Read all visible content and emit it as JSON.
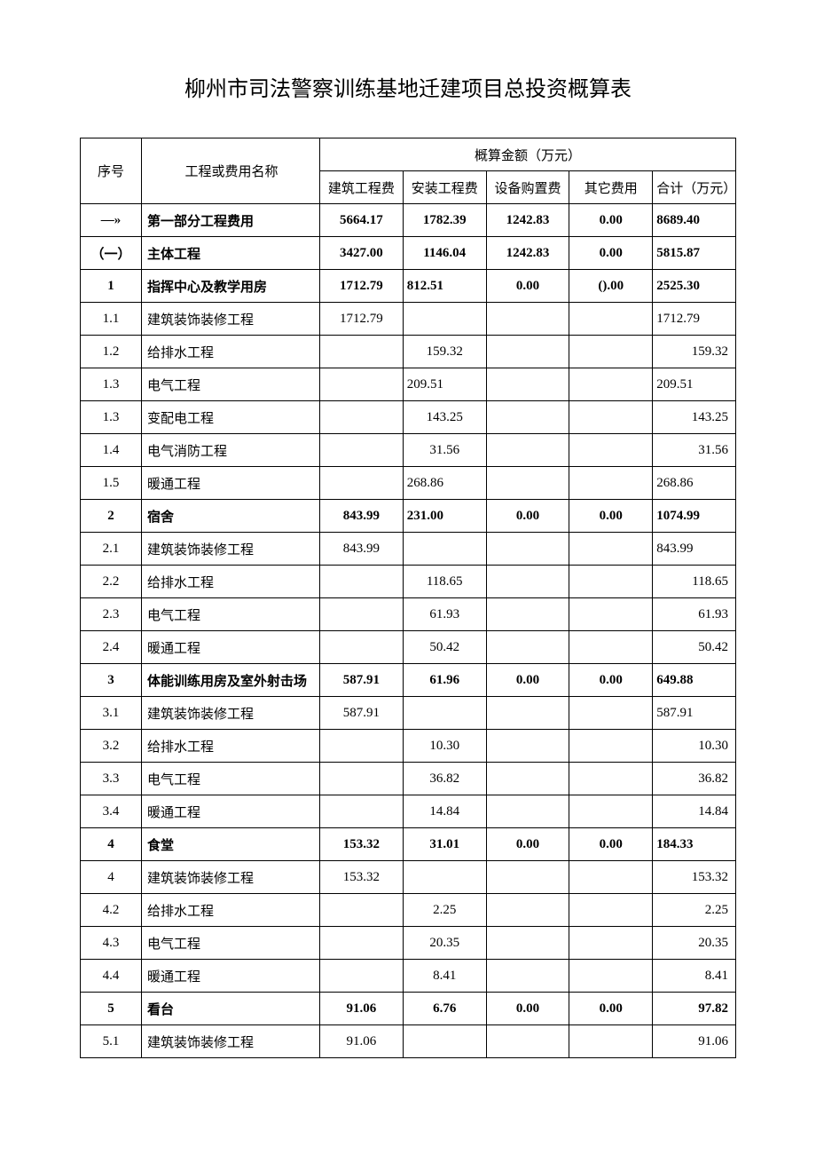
{
  "title": "柳州市司法警察训练基地迁建项目总投资概算表",
  "headers": {
    "seq": "序号",
    "name": "工程或费用名称",
    "group": "概算金额（万元）",
    "c1": "建筑工程费",
    "c2": "安装工程费",
    "c3": "设备购置费",
    "c4": "其它费用",
    "total": "合计（万元）"
  },
  "rows": [
    {
      "seq": "—»",
      "name": "第一部分工程费用",
      "c1": "5664.17",
      "c2": "1782.39",
      "c3": "1242.83",
      "c4": "0.00",
      "total": "8689.40",
      "bold": true,
      "a1": "c",
      "a2": "c",
      "a3": "c",
      "a4": "c",
      "at": "l"
    },
    {
      "seq": "（一）",
      "name": "主体工程",
      "c1": "3427.00",
      "c2": "1146.04",
      "c3": "1242.83",
      "c4": "0.00",
      "total": "5815.87",
      "bold": true,
      "a1": "c",
      "a2": "c",
      "a3": "c",
      "a4": "c",
      "at": "l"
    },
    {
      "seq": "1",
      "name": "指挥中心及教学用房",
      "c1": "1712.79",
      "c2": "812.51",
      "c3": "0.00",
      "c4": "().00",
      "total": "2525.30",
      "bold": true,
      "a1": "c",
      "a2": "l",
      "a3": "c",
      "a4": "c",
      "at": "l"
    },
    {
      "seq": "1.1",
      "name": "建筑装饰装修工程",
      "c1": "1712.79",
      "c2": "",
      "c3": "",
      "c4": "",
      "total": "1712.79",
      "bold": false,
      "a1": "c",
      "a2": "c",
      "a3": "c",
      "a4": "c",
      "at": "l"
    },
    {
      "seq": "1.2",
      "name": "给排水工程",
      "c1": "",
      "c2": "159.32",
      "c3": "",
      "c4": "",
      "total": "159.32",
      "bold": false,
      "a1": "c",
      "a2": "c",
      "a3": "c",
      "a4": "c",
      "at": "r"
    },
    {
      "seq": "1.3",
      "name": "电气工程",
      "c1": "",
      "c2": "209.51",
      "c3": "",
      "c4": "",
      "total": "209.51",
      "bold": false,
      "a1": "c",
      "a2": "l",
      "a3": "c",
      "a4": "c",
      "at": "l"
    },
    {
      "seq": "1.3",
      "name": "变配电工程",
      "c1": "",
      "c2": "143.25",
      "c3": "",
      "c4": "",
      "total": "143.25",
      "bold": false,
      "a1": "c",
      "a2": "c",
      "a3": "c",
      "a4": "c",
      "at": "r"
    },
    {
      "seq": "1.4",
      "name": "电气消防工程",
      "c1": "",
      "c2": "31.56",
      "c3": "",
      "c4": "",
      "total": "31.56",
      "bold": false,
      "a1": "c",
      "a2": "c",
      "a3": "c",
      "a4": "c",
      "at": "r"
    },
    {
      "seq": "1.5",
      "name": "暖通工程",
      "c1": "",
      "c2": "268.86",
      "c3": "",
      "c4": "",
      "total": "268.86",
      "bold": false,
      "a1": "c",
      "a2": "l",
      "a3": "c",
      "a4": "c",
      "at": "l"
    },
    {
      "seq": "2",
      "name": "宿舍",
      "c1": "843.99",
      "c2": "231.00",
      "c3": "0.00",
      "c4": "0.00",
      "total": "1074.99",
      "bold": true,
      "a1": "c",
      "a2": "l",
      "a3": "c",
      "a4": "c",
      "at": "l"
    },
    {
      "seq": "2.1",
      "name": "建筑装饰装修工程",
      "c1": "843.99",
      "c2": "",
      "c3": "",
      "c4": "",
      "total": "843.99",
      "bold": false,
      "a1": "c",
      "a2": "c",
      "a3": "c",
      "a4": "c",
      "at": "l"
    },
    {
      "seq": "2.2",
      "name": "给排水工程",
      "c1": "",
      "c2": "118.65",
      "c3": "",
      "c4": "",
      "total": "118.65",
      "bold": false,
      "a1": "c",
      "a2": "c",
      "a3": "c",
      "a4": "c",
      "at": "r"
    },
    {
      "seq": "2.3",
      "name": "电气工程",
      "c1": "",
      "c2": "61.93",
      "c3": "",
      "c4": "",
      "total": "61.93",
      "bold": false,
      "a1": "c",
      "a2": "c",
      "a3": "c",
      "a4": "c",
      "at": "r"
    },
    {
      "seq": "2.4",
      "name": "暖通工程",
      "c1": "",
      "c2": "50.42",
      "c3": "",
      "c4": "",
      "total": "50.42",
      "bold": false,
      "a1": "c",
      "a2": "c",
      "a3": "c",
      "a4": "c",
      "at": "r"
    },
    {
      "seq": "3",
      "name": "体能训练用房及室外射击场",
      "c1": "587.91",
      "c2": "61.96",
      "c3": "0.00",
      "c4": "0.00",
      "total": "649.88",
      "bold": true,
      "a1": "c",
      "a2": "c",
      "a3": "c",
      "a4": "c",
      "at": "l"
    },
    {
      "seq": "3.1",
      "name": "建筑装饰装修工程",
      "c1": "587.91",
      "c2": "",
      "c3": "",
      "c4": "",
      "total": "587.91",
      "bold": false,
      "a1": "c",
      "a2": "c",
      "a3": "c",
      "a4": "c",
      "at": "l"
    },
    {
      "seq": "3.2",
      "name": "给排水工程",
      "c1": "",
      "c2": "10.30",
      "c3": "",
      "c4": "",
      "total": "10.30",
      "bold": false,
      "a1": "c",
      "a2": "c",
      "a3": "c",
      "a4": "c",
      "at": "r"
    },
    {
      "seq": "3.3",
      "name": "电气工程",
      "c1": "",
      "c2": "36.82",
      "c3": "",
      "c4": "",
      "total": "36.82",
      "bold": false,
      "a1": "c",
      "a2": "c",
      "a3": "c",
      "a4": "c",
      "at": "r"
    },
    {
      "seq": "3.4",
      "name": "暖通工程",
      "c1": "",
      "c2": "14.84",
      "c3": "",
      "c4": "",
      "total": "14.84",
      "bold": false,
      "a1": "c",
      "a2": "c",
      "a3": "c",
      "a4": "c",
      "at": "r"
    },
    {
      "seq": "4",
      "name": "食堂",
      "c1": "153.32",
      "c2": "31.01",
      "c3": "0.00",
      "c4": "0.00",
      "total": "184.33",
      "bold": true,
      "a1": "c",
      "a2": "c",
      "a3": "c",
      "a4": "c",
      "at": "l"
    },
    {
      "seq": "4",
      "name": "建筑装饰装修工程",
      "c1": "153.32",
      "c2": "",
      "c3": "",
      "c4": "",
      "total": "153.32",
      "bold": false,
      "a1": "c",
      "a2": "c",
      "a3": "c",
      "a4": "c",
      "at": "r"
    },
    {
      "seq": "4.2",
      "name": "给排水工程",
      "c1": "",
      "c2": "2.25",
      "c3": "",
      "c4": "",
      "total": "2.25",
      "bold": false,
      "a1": "c",
      "a2": "c",
      "a3": "c",
      "a4": "c",
      "at": "r"
    },
    {
      "seq": "4.3",
      "name": "电气工程",
      "c1": "",
      "c2": "20.35",
      "c3": "",
      "c4": "",
      "total": "20.35",
      "bold": false,
      "a1": "c",
      "a2": "c",
      "a3": "c",
      "a4": "c",
      "at": "r"
    },
    {
      "seq": "4.4",
      "name": "暖通工程",
      "c1": "",
      "c2": "8.41",
      "c3": "",
      "c4": "",
      "total": "8.41",
      "bold": false,
      "a1": "c",
      "a2": "c",
      "a3": "c",
      "a4": "c",
      "at": "r"
    },
    {
      "seq": "5",
      "name": "看台",
      "c1": "91.06",
      "c2": "6.76",
      "c3": "0.00",
      "c4": "0.00",
      "total": "97.82",
      "bold": true,
      "a1": "c",
      "a2": "c",
      "a3": "c",
      "a4": "c",
      "at": "r"
    },
    {
      "seq": "5.1",
      "name": "建筑装饰装修工程",
      "c1": "91.06",
      "c2": "",
      "c3": "",
      "c4": "",
      "total": "91.06",
      "bold": false,
      "a1": "c",
      "a2": "c",
      "a3": "c",
      "a4": "c",
      "at": "r"
    }
  ]
}
